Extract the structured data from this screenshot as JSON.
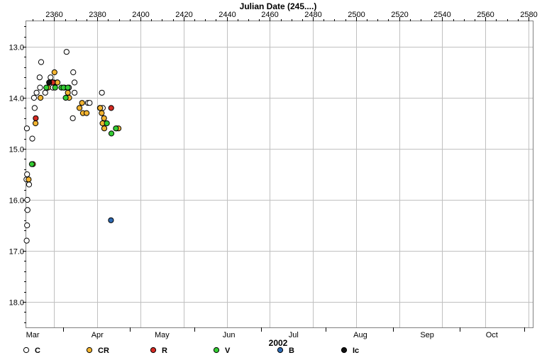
{
  "chart_data": {
    "type": "scatter",
    "title": "Julian Date (245....)",
    "xlabel": "2002",
    "ylabel": "",
    "xlim": [
      2347,
      2582
    ],
    "ylim": [
      18.5,
      12.5
    ],
    "y_inverted": true,
    "grid": true,
    "top_ticks": [
      "2360",
      "2380",
      "2400",
      "2420",
      "2440",
      "2460",
      "2480",
      "2500",
      "2520",
      "2540",
      "2560",
      "2580"
    ],
    "top_tick_values": [
      2360,
      2380,
      2400,
      2420,
      2440,
      2460,
      2480,
      2500,
      2520,
      2540,
      2560,
      2580
    ],
    "bottom_ticks": [
      "Mar",
      "Apr",
      "May",
      "Jun",
      "Jul",
      "Aug",
      "Sep",
      "Oct"
    ],
    "bottom_tick_values": [
      2350,
      2380,
      2410,
      2441,
      2471,
      2502,
      2533,
      2563
    ],
    "month_boundaries": [
      2364,
      2395,
      2425,
      2456,
      2486,
      2517,
      2548,
      2578
    ],
    "y_ticks": [
      "13.0",
      "14.0",
      "15.0",
      "16.0",
      "17.0",
      "18.0"
    ],
    "y_tick_values": [
      13,
      14,
      15,
      16,
      17,
      18
    ],
    "legend_position": "bottom",
    "series": [
      {
        "name": "C",
        "color": "#ffffff",
        "points": [
          [
            2347.1,
            15.6
          ],
          [
            2347.3,
            14.6
          ],
          [
            2347.4,
            15.5
          ],
          [
            2347.5,
            16.0
          ],
          [
            2347.6,
            16.2
          ],
          [
            2347.4,
            16.5
          ],
          [
            2347.2,
            16.8
          ],
          [
            2348.3,
            15.7
          ],
          [
            2349.8,
            14.8
          ],
          [
            2350.9,
            14.2
          ],
          [
            2350.6,
            14.0
          ],
          [
            2351.8,
            13.9
          ],
          [
            2353.2,
            13.6
          ],
          [
            2353.9,
            13.3
          ],
          [
            2353.4,
            13.8
          ],
          [
            2355.8,
            13.9
          ],
          [
            2356.8,
            13.8
          ],
          [
            2358.3,
            13.6
          ],
          [
            2359.3,
            13.8
          ],
          [
            2361.3,
            13.7
          ],
          [
            2365.7,
            13.1
          ],
          [
            2366.8,
            13.8
          ],
          [
            2368.6,
            14.4
          ],
          [
            2368.8,
            13.5
          ],
          [
            2369.4,
            13.7
          ],
          [
            2369.4,
            13.9
          ],
          [
            2375.6,
            14.1
          ],
          [
            2376.4,
            14.1
          ],
          [
            2381.2,
            14.2
          ],
          [
            2382.5,
            14.2
          ],
          [
            2382.1,
            13.9
          ]
        ]
      },
      {
        "name": "CR",
        "color": "#f2b431",
        "points": [
          [
            2348.1,
            15.6
          ],
          [
            2350.1,
            15.3
          ],
          [
            2351.3,
            14.5
          ],
          [
            2353.6,
            14.0
          ],
          [
            2357.1,
            13.8
          ],
          [
            2359.7,
            13.7
          ],
          [
            2360.1,
            13.5
          ],
          [
            2361.5,
            13.7
          ],
          [
            2364.7,
            13.8
          ],
          [
            2366.3,
            13.9
          ],
          [
            2366.9,
            14.0
          ],
          [
            2371.7,
            14.2
          ],
          [
            2372.9,
            14.1
          ],
          [
            2373.3,
            14.3
          ],
          [
            2375.0,
            14.3
          ],
          [
            2381.3,
            14.2
          ],
          [
            2382.0,
            14.3
          ],
          [
            2382.4,
            14.5
          ],
          [
            2383.1,
            14.4
          ],
          [
            2383.2,
            14.6
          ],
          [
            2388.9,
            14.6
          ],
          [
            2389.8,
            14.6
          ]
        ]
      },
      {
        "name": "R",
        "color": "#d42a22",
        "points": [
          [
            2351.4,
            14.4
          ],
          [
            2359.3,
            13.7
          ],
          [
            2386.4,
            14.2
          ]
        ]
      },
      {
        "name": "V",
        "color": "#33cc33",
        "points": [
          [
            2349.6,
            15.3
          ],
          [
            2356.3,
            13.8
          ],
          [
            2360.4,
            13.8
          ],
          [
            2363.3,
            13.8
          ],
          [
            2364.3,
            13.8
          ],
          [
            2365.3,
            14.0
          ],
          [
            2366.3,
            13.8
          ],
          [
            2384.4,
            14.5
          ],
          [
            2386.5,
            14.7
          ],
          [
            2388.6,
            14.6
          ]
        ]
      },
      {
        "name": "B",
        "color": "#2e6ab3",
        "points": [
          [
            2386.3,
            16.4
          ]
        ]
      },
      {
        "name": "Ic",
        "color": "#111111",
        "points": [
          [
            2357.6,
            13.7
          ]
        ]
      }
    ]
  }
}
